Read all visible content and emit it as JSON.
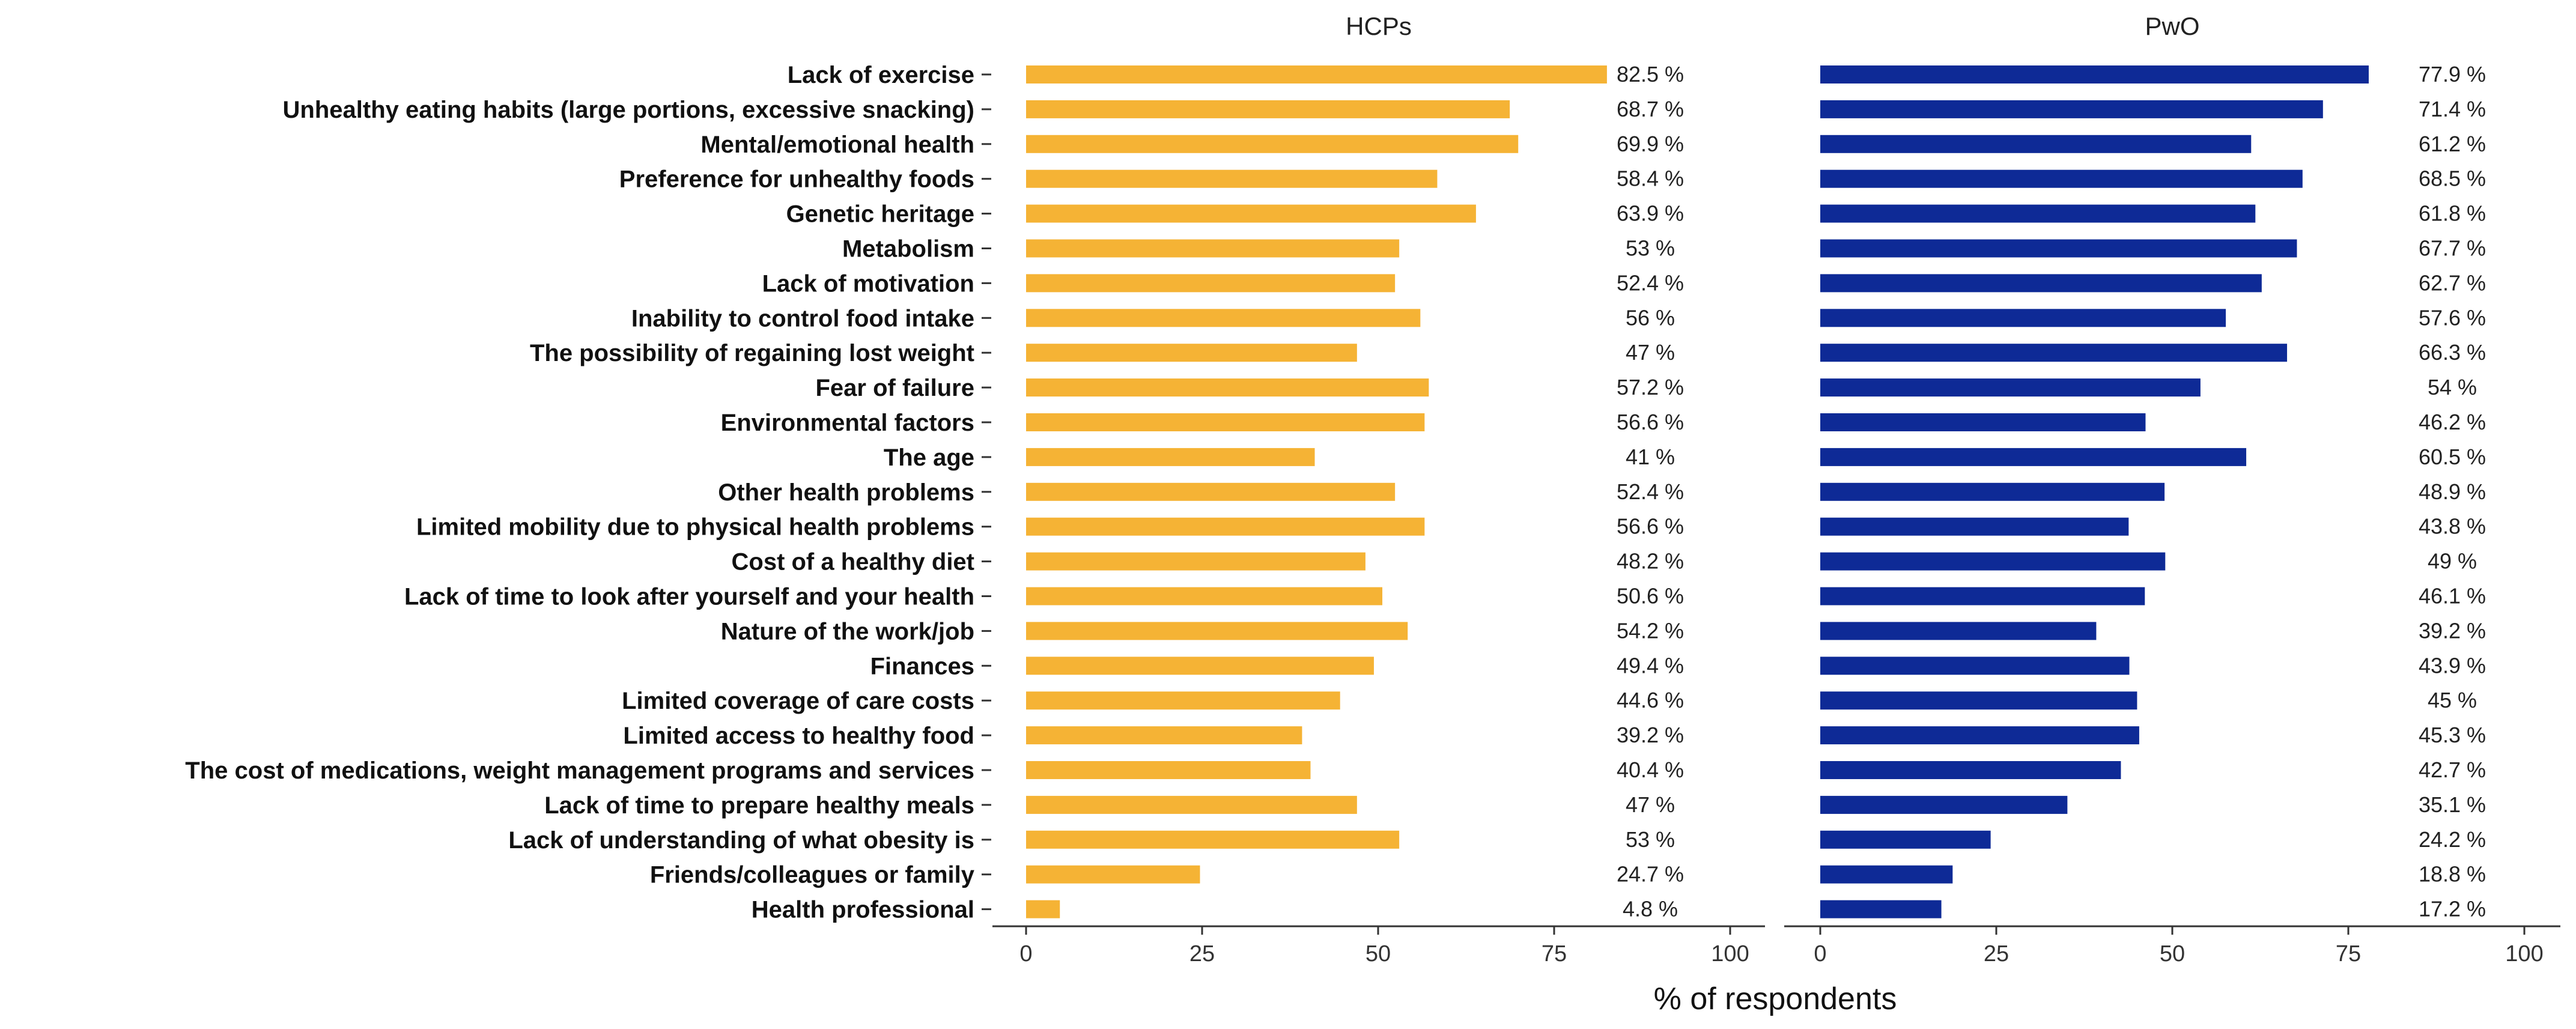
{
  "chart_data": {
    "type": "bar",
    "orientation": "horizontal",
    "categories": [
      "Lack of exercise",
      "Unhealthy eating habits (large portions, excessive snacking)",
      "Mental/emotional health",
      "Preference for unhealthy foods",
      "Genetic heritage",
      "Metabolism",
      "Lack of motivation",
      "Inability to control  food intake",
      "The possibility of regaining lost weight",
      "Fear of failure",
      "Environmental factors",
      "The age",
      "Other health problems",
      "Limited mobility due to physical health problems",
      "Cost of a healthy diet",
      "Lack of time to look after yourself and your health",
      "Nature of the work/job",
      "Finances",
      "Limited coverage of care costs",
      "Limited access to healthy food",
      "The cost of medications, weight management programs and services",
      "Lack of time to prepare healthy meals",
      "Lack of understanding of what obesity is",
      "Friends/colleagues or family",
      "Health professional"
    ],
    "series": [
      {
        "name": "HCPs",
        "color": "#F5B335",
        "values": [
          82.5,
          68.7,
          69.9,
          58.4,
          63.9,
          53,
          52.4,
          56,
          47,
          57.2,
          56.6,
          41,
          52.4,
          56.6,
          48.2,
          50.6,
          54.2,
          49.4,
          44.6,
          39.2,
          40.4,
          47,
          53,
          24.7,
          4.8
        ],
        "labels": [
          "82.5 %",
          "68.7 %",
          "69.9 %",
          "58.4 %",
          "63.9 %",
          "53 %",
          "52.4 %",
          "56 %",
          "47 %",
          "57.2 %",
          "56.6 %",
          "41 %",
          "52.4 %",
          "56.6 %",
          "48.2 %",
          "50.6 %",
          "54.2 %",
          "49.4 %",
          "44.6 %",
          "39.2 %",
          "40.4 %",
          "47 %",
          "53 %",
          "24.7 %",
          "4.8 %"
        ]
      },
      {
        "name": "PwO",
        "color": "#0E2A96",
        "values": [
          77.9,
          71.4,
          61.2,
          68.5,
          61.8,
          67.7,
          62.7,
          57.6,
          66.3,
          54,
          46.2,
          60.5,
          48.9,
          43.8,
          49,
          46.1,
          39.2,
          43.9,
          45,
          45.3,
          42.7,
          35.1,
          24.2,
          18.8,
          17.2
        ],
        "labels": [
          "77.9 %",
          "71.4 %",
          "61.2 %",
          "68.5 %",
          "61.8 %",
          "67.7 %",
          "62.7 %",
          "57.6 %",
          "66.3 %",
          "54 %",
          "46.2 %",
          "60.5 %",
          "48.9 %",
          "43.8 %",
          "49 %",
          "46.1 %",
          "39.2 %",
          "43.9 %",
          "45 %",
          "45.3 %",
          "42.7 %",
          "35.1 %",
          "24.2 %",
          "18.8 %",
          "17.2 %"
        ]
      }
    ],
    "xlabel": "% of respondents",
    "xlim": [
      0,
      100
    ],
    "xticks": [
      0,
      25,
      50,
      75,
      100
    ],
    "grid": false
  }
}
